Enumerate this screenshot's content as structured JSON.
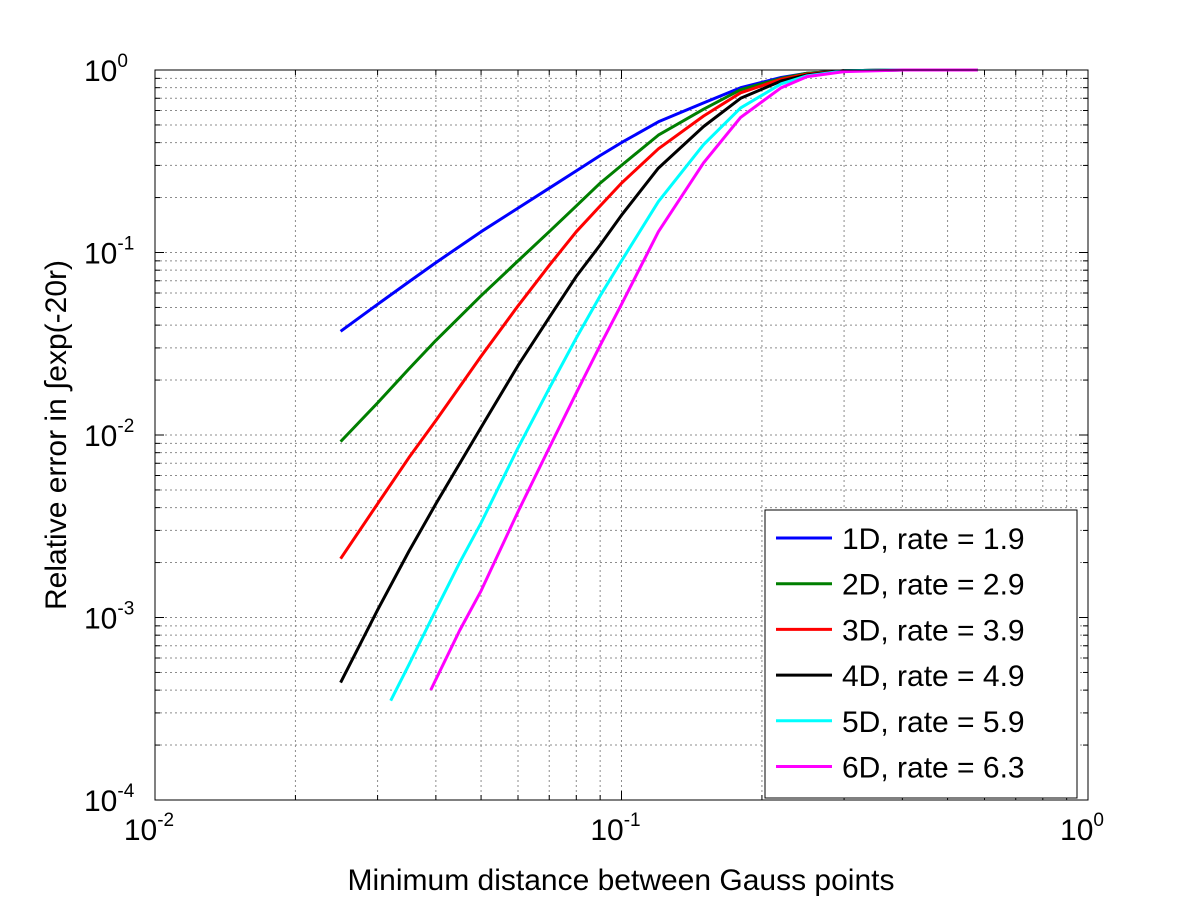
{
  "chart_data": {
    "type": "line",
    "xscale": "log",
    "yscale": "log",
    "xlim": [
      0.01,
      1
    ],
    "ylim": [
      0.0001,
      1
    ],
    "grid": true,
    "xlabel": "Minimum distance between Gauss points",
    "ylabel": "Relative error in ∫exp(-20r)",
    "x_ticks": [
      {
        "value": 0.01,
        "base": "10",
        "exp": "-2"
      },
      {
        "value": 0.1,
        "base": "10",
        "exp": "-1"
      },
      {
        "value": 1,
        "base": "10",
        "exp": "0"
      }
    ],
    "y_ticks": [
      {
        "value": 0.0001,
        "base": "10",
        "exp": "-4"
      },
      {
        "value": 0.001,
        "base": "10",
        "exp": "-3"
      },
      {
        "value": 0.01,
        "base": "10",
        "exp": "-2"
      },
      {
        "value": 0.1,
        "base": "10",
        "exp": "-1"
      },
      {
        "value": 1,
        "base": "10",
        "exp": "0"
      }
    ],
    "legend_position": "bottom-right",
    "series": [
      {
        "name": "1D, rate = 1.9",
        "color": "#0000ff",
        "points": [
          [
            0.025,
            0.037
          ],
          [
            0.03,
            0.052
          ],
          [
            0.035,
            0.069
          ],
          [
            0.04,
            0.088
          ],
          [
            0.05,
            0.13
          ],
          [
            0.06,
            0.175
          ],
          [
            0.07,
            0.225
          ],
          [
            0.08,
            0.28
          ],
          [
            0.09,
            0.34
          ],
          [
            0.1,
            0.4
          ],
          [
            0.12,
            0.52
          ],
          [
            0.15,
            0.66
          ],
          [
            0.18,
            0.8
          ],
          [
            0.22,
            0.91
          ],
          [
            0.25,
            0.96
          ],
          [
            0.3,
            0.99
          ],
          [
            0.4,
            1.0
          ],
          [
            0.58,
            1.0
          ]
        ]
      },
      {
        "name": "2D, rate = 2.9",
        "color": "#007f00",
        "points": [
          [
            0.025,
            0.0092
          ],
          [
            0.03,
            0.015
          ],
          [
            0.035,
            0.023
          ],
          [
            0.04,
            0.033
          ],
          [
            0.05,
            0.058
          ],
          [
            0.06,
            0.09
          ],
          [
            0.07,
            0.13
          ],
          [
            0.08,
            0.18
          ],
          [
            0.09,
            0.24
          ],
          [
            0.1,
            0.3
          ],
          [
            0.12,
            0.44
          ],
          [
            0.15,
            0.61
          ],
          [
            0.18,
            0.78
          ],
          [
            0.22,
            0.9
          ],
          [
            0.25,
            0.96
          ],
          [
            0.3,
            0.99
          ],
          [
            0.4,
            1.0
          ],
          [
            0.58,
            1.0
          ]
        ]
      },
      {
        "name": "3D, rate = 3.9",
        "color": "#ff0000",
        "points": [
          [
            0.025,
            0.0021
          ],
          [
            0.03,
            0.0042
          ],
          [
            0.035,
            0.0075
          ],
          [
            0.04,
            0.012
          ],
          [
            0.05,
            0.027
          ],
          [
            0.06,
            0.051
          ],
          [
            0.07,
            0.085
          ],
          [
            0.08,
            0.13
          ],
          [
            0.09,
            0.18
          ],
          [
            0.1,
            0.24
          ],
          [
            0.12,
            0.37
          ],
          [
            0.15,
            0.56
          ],
          [
            0.18,
            0.75
          ],
          [
            0.22,
            0.89
          ],
          [
            0.25,
            0.95
          ],
          [
            0.3,
            0.99
          ],
          [
            0.4,
            1.0
          ],
          [
            0.58,
            1.0
          ]
        ]
      },
      {
        "name": "4D, rate = 4.9",
        "color": "#000000",
        "points": [
          [
            0.025,
            0.00044
          ],
          [
            0.03,
            0.0011
          ],
          [
            0.035,
            0.0023
          ],
          [
            0.04,
            0.0042
          ],
          [
            0.05,
            0.011
          ],
          [
            0.06,
            0.024
          ],
          [
            0.07,
            0.044
          ],
          [
            0.08,
            0.074
          ],
          [
            0.09,
            0.11
          ],
          [
            0.1,
            0.16
          ],
          [
            0.12,
            0.29
          ],
          [
            0.15,
            0.49
          ],
          [
            0.18,
            0.7
          ],
          [
            0.22,
            0.87
          ],
          [
            0.25,
            0.94
          ],
          [
            0.3,
            0.99
          ],
          [
            0.4,
            1.0
          ],
          [
            0.58,
            1.0
          ]
        ]
      },
      {
        "name": "5D, rate = 5.9",
        "color": "#00ffff",
        "points": [
          [
            0.032,
            0.00035
          ],
          [
            0.035,
            0.00055
          ],
          [
            0.04,
            0.0011
          ],
          [
            0.045,
            0.002
          ],
          [
            0.05,
            0.0033
          ],
          [
            0.06,
            0.0085
          ],
          [
            0.07,
            0.018
          ],
          [
            0.08,
            0.034
          ],
          [
            0.09,
            0.058
          ],
          [
            0.1,
            0.09
          ],
          [
            0.12,
            0.19
          ],
          [
            0.15,
            0.39
          ],
          [
            0.18,
            0.62
          ],
          [
            0.22,
            0.84
          ],
          [
            0.25,
            0.93
          ],
          [
            0.3,
            0.99
          ],
          [
            0.4,
            1.0
          ],
          [
            0.58,
            1.0
          ]
        ]
      },
      {
        "name": "6D, rate = 6.3",
        "color": "#ff00ff",
        "points": [
          [
            0.039,
            0.0004
          ],
          [
            0.045,
            0.00085
          ],
          [
            0.05,
            0.0014
          ],
          [
            0.06,
            0.0038
          ],
          [
            0.07,
            0.0085
          ],
          [
            0.08,
            0.017
          ],
          [
            0.09,
            0.031
          ],
          [
            0.1,
            0.052
          ],
          [
            0.12,
            0.13
          ],
          [
            0.15,
            0.31
          ],
          [
            0.18,
            0.55
          ],
          [
            0.22,
            0.8
          ],
          [
            0.25,
            0.92
          ],
          [
            0.3,
            0.98
          ],
          [
            0.4,
            1.0
          ],
          [
            0.58,
            1.0
          ]
        ]
      }
    ]
  }
}
